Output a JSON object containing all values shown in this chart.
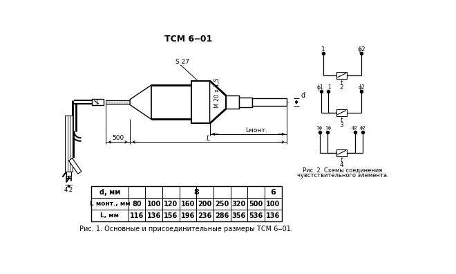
{
  "title": "ТСМ 6‒01",
  "bg_color": "#ffffff",
  "table_row1_label": "L монт., мм",
  "table_row1_values": [
    "80",
    "100",
    "120",
    "160",
    "200",
    "250",
    "320",
    "500",
    "100"
  ],
  "table_row2_label": "L, мм",
  "table_row2_values": [
    "116",
    "136",
    "156",
    "196",
    "236",
    "286",
    "356",
    "536",
    "136"
  ],
  "caption1": "Рис. 1. Основные и присоединительные размеры ТСМ 6‒01.",
  "caption2_line1": "Рис. 2. Схемы соединения",
  "caption2_line2": "чувстствительного элемента.",
  "label_S27": "S 27",
  "label_M20": "М 20 х 1,5",
  "label_d": "d",
  "label_Lmont": "Lмонт.",
  "label_L": "L",
  "label_500": "500",
  "label_4_2": "4.2"
}
